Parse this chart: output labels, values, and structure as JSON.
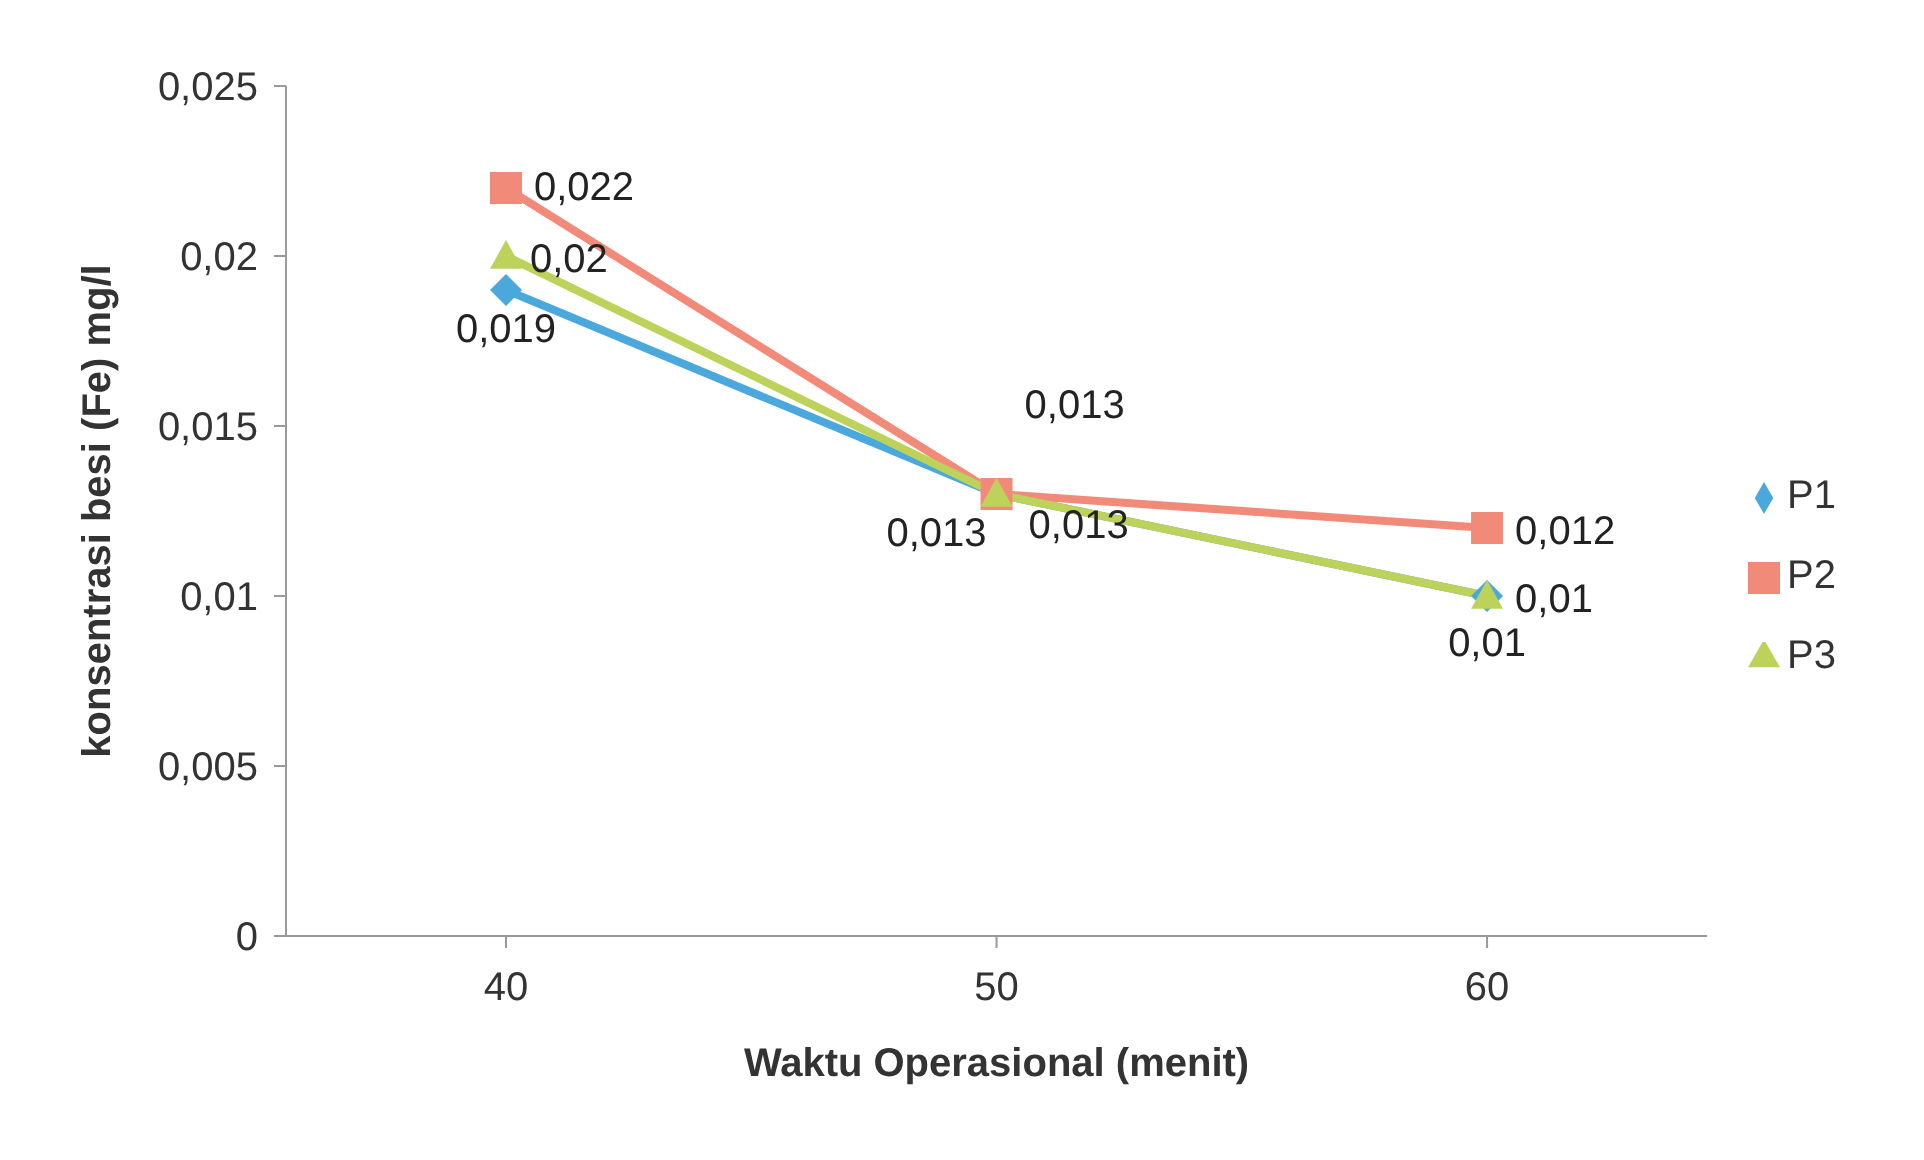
{
  "chart_data": {
    "type": "line",
    "xlabel": "Waktu Operasional (menit)",
    "ylabel": "konsentrasi besi (Fe) mg/l",
    "categories": [
      "40",
      "50",
      "60"
    ],
    "series": [
      {
        "name": "P1",
        "color": "#4aa8dc",
        "marker": "diamond",
        "values": [
          0.019,
          0.013,
          0.01
        ],
        "value_labels": [
          "0,019",
          "0,013",
          "0,01"
        ]
      },
      {
        "name": "P2",
        "color": "#f28a7a",
        "marker": "square",
        "values": [
          0.022,
          0.013,
          0.012
        ],
        "value_labels": [
          "0,022",
          "0,013",
          "0,012"
        ]
      },
      {
        "name": "P3",
        "color": "#bcd25a",
        "marker": "triangle",
        "values": [
          0.02,
          0.013,
          0.01
        ],
        "value_labels": [
          "0,02",
          "0,013",
          "0,01"
        ]
      }
    ],
    "ylim": [
      0,
      0.025
    ],
    "yticks": [
      0,
      {
        "value": 0.005,
        "label": "0,005"
      },
      {
        "value": 0.01,
        "label": "0,01"
      },
      {
        "value": 0.015,
        "label": "0,015"
      },
      {
        "value": 0.02,
        "label": "0,02"
      },
      {
        "value": 0.025,
        "label": "0,025"
      }
    ],
    "grid": false,
    "legend": "right",
    "line_style": "solid"
  }
}
